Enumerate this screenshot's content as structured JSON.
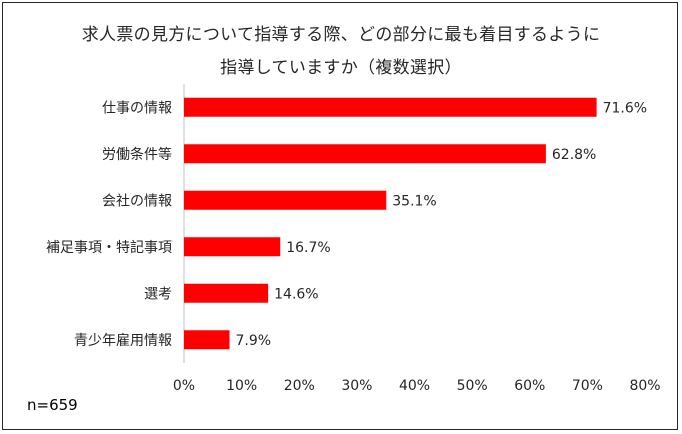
{
  "title_line1": "求人票の見方について指導する際、どの部分に最も着目するように",
  "title_line2": "指導していますか（複数選択）",
  "sample_size": "n=659",
  "colors": {
    "bar": "#ff0000",
    "axis": "#bfbfbf",
    "text": "#262626"
  },
  "chart_data": {
    "type": "bar",
    "orientation": "horizontal",
    "categories": [
      "仕事の情報",
      "労働条件等",
      "会社の情報",
      "補足事項・特記事項",
      "選考",
      "青少年雇用情報"
    ],
    "values": [
      71.6,
      62.8,
      35.1,
      16.7,
      14.6,
      7.9
    ],
    "value_labels": [
      "71.6%",
      "62.8%",
      "35.1%",
      "16.7%",
      "14.6%",
      "7.9%"
    ],
    "xlim": [
      0,
      80
    ],
    "xticks": [
      0,
      10,
      20,
      30,
      40,
      50,
      60,
      70,
      80
    ],
    "xtick_labels": [
      "0%",
      "10%",
      "20%",
      "30%",
      "40%",
      "50%",
      "60%",
      "70%",
      "80%"
    ],
    "grid": false,
    "legend": false
  }
}
